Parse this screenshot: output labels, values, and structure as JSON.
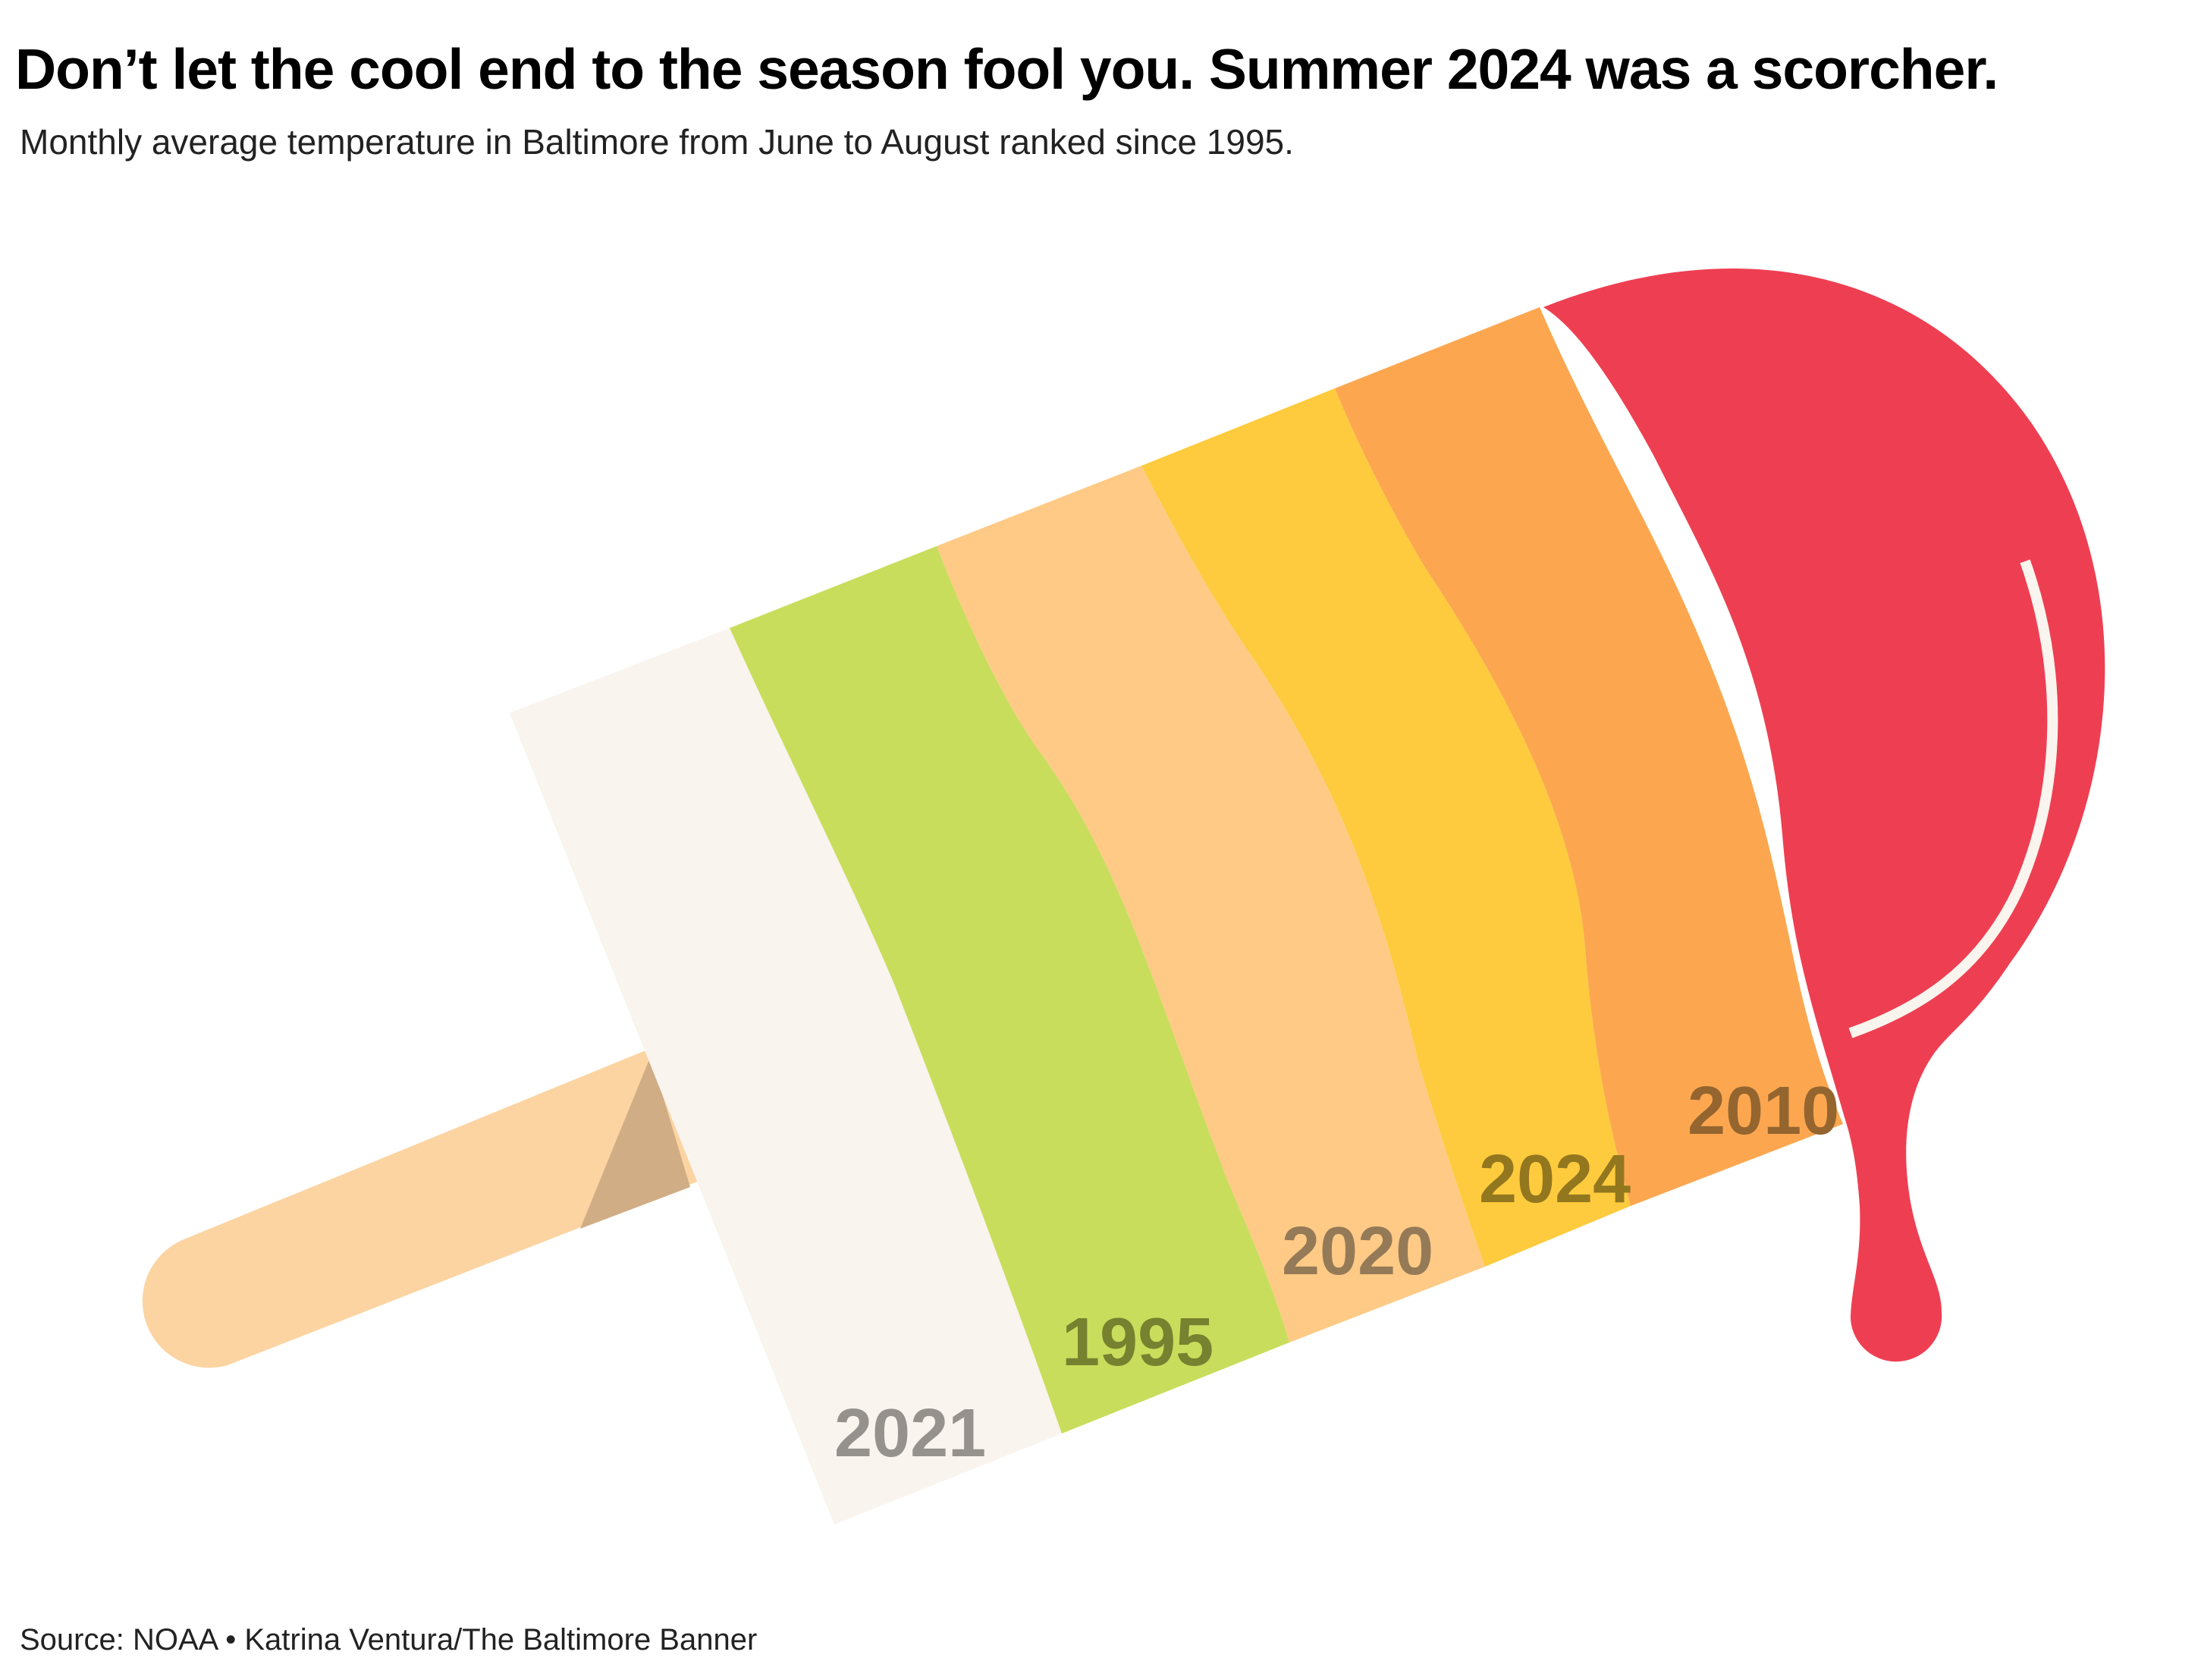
{
  "title": "Don’t let the cool end to the season fool you. Summer 2024 was a scorcher.",
  "subtitle": "Monthly average temperature in Baltimore from June to August ranked since 1995.",
  "source": "Source: NOAA • Katrina Ventura/The Baltimore Banner",
  "colors": {
    "stick": "#FCD4A2",
    "stick_shadow": "#D0AD85",
    "cream": "#F9F4EE",
    "lime": "#C9DD5C",
    "peach": "#FECA85",
    "yellow": "#FDCB3D",
    "orange": "#FCA750",
    "red": "#EE3F52",
    "highlight": "#F9F4EE"
  },
  "chart_data": {
    "type": "bar",
    "ordering": "coolest to hottest",
    "categories": [
      "2021",
      "1995",
      "2020",
      "2024",
      "2010"
    ],
    "colors": [
      "#F9F4EE",
      "#C9DD5C",
      "#FECA85",
      "#FDCB3D",
      "#FCA750"
    ],
    "label_colors": [
      "#95918D",
      "#76822F",
      "#957A58",
      "#93771F",
      "#94652F"
    ],
    "hottest": {
      "label": "",
      "color": "#EE3F52"
    }
  }
}
